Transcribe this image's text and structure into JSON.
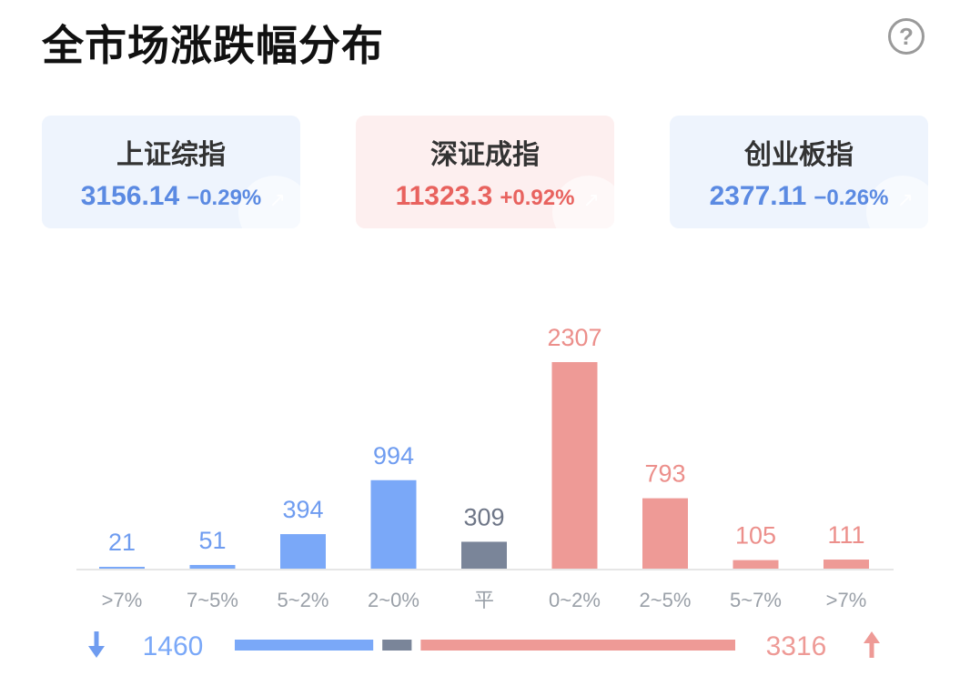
{
  "title": "全市场涨跌幅分布",
  "help_icon": "question-mark-icon",
  "indices": [
    {
      "name": "上证综指",
      "value": "3156.14",
      "change": "−0.29%",
      "trend": "down"
    },
    {
      "name": "深证成指",
      "value": "11323.3",
      "change": "+0.92%",
      "trend": "up"
    },
    {
      "name": "创业板指",
      "value": "2377.11",
      "change": "−0.26%",
      "trend": "down"
    }
  ],
  "chart_data": {
    "type": "bar",
    "categories": [
      ">7%",
      "7~5%",
      "5~2%",
      "2~0%",
      "平",
      "0~2%",
      "2~5%",
      "5~7%",
      ">7%"
    ],
    "values": [
      21,
      51,
      394,
      994,
      309,
      2307,
      793,
      105,
      111
    ],
    "bar_groups": [
      "down",
      "down",
      "down",
      "down",
      "flat",
      "up",
      "up",
      "up",
      "up"
    ],
    "ylim": [
      0,
      2307
    ]
  },
  "summary": {
    "down_count": "1460",
    "up_count": "3316",
    "flat_count": 309
  },
  "colors": {
    "down": "#7aa8f8",
    "flat": "#7a8599",
    "up": "#ee9a96",
    "down_label": "#6f9cf0",
    "flat_label": "#6e7687",
    "up_label": "#ec8f8b",
    "axis_label": "#9aa0a8"
  }
}
